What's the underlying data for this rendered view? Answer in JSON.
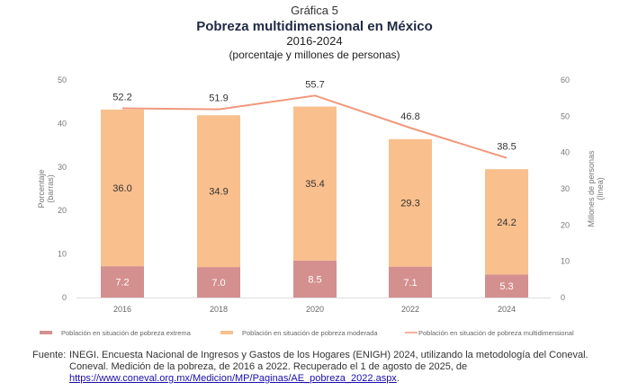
{
  "header": {
    "label": "Gráfica 5",
    "title": "Pobreza multidimensional en México",
    "period": "2016-2024",
    "units": "(porcentaje y millones de personas)"
  },
  "chart_data": {
    "type": "bar",
    "stacked": true,
    "categories": [
      "2016",
      "2018",
      "2020",
      "2022",
      "2024"
    ],
    "series": [
      {
        "name": "Población en situación de pobreza extrema",
        "type": "bar",
        "axis": "left",
        "color": "#d48f8f",
        "values": [
          7.2,
          7.0,
          8.5,
          7.1,
          5.3
        ]
      },
      {
        "name": "Población en situación de pobreza moderada",
        "type": "bar",
        "axis": "left",
        "color": "#f9bf8c",
        "values": [
          36.0,
          34.9,
          35.4,
          29.3,
          24.2
        ]
      },
      {
        "name": "Población en situación de pobreza multidimensional",
        "type": "line",
        "axis": "right",
        "color": "#f0987c",
        "values": [
          52.2,
          51.9,
          55.7,
          46.8,
          38.5
        ]
      }
    ],
    "ylabel": "Porcentaje (barras)",
    "ylabel_lines": [
      "Porcentaje",
      "(barras)"
    ],
    "y2label": "Millones de personas (línea)",
    "y2label_lines": [
      "Millones de personas",
      "(línea)"
    ],
    "ylim": [
      0,
      50
    ],
    "yticks": [
      "0",
      "10",
      "20",
      "30",
      "40",
      "50"
    ],
    "y2lim": [
      0,
      60
    ],
    "y2ticks": [
      "0",
      "10",
      "20",
      "30",
      "40",
      "50",
      "60"
    ],
    "grid": false,
    "legend": "bottom"
  },
  "source": {
    "label": "Fuente:",
    "line1": "INEGI. Encuesta Nacional de Ingresos y Gastos de los Hogares (ENIGH) 2024, utilizando la metodología del Coneval.",
    "line2": "Coneval. Medición de la pobreza, de 2016 a 2022. Recuperado el 1 de agosto de 2025, de",
    "link": "https://www.coneval.org.mx/Medicion/MP/Paginas/AE_pobreza_2022.aspx",
    "end": "."
  }
}
